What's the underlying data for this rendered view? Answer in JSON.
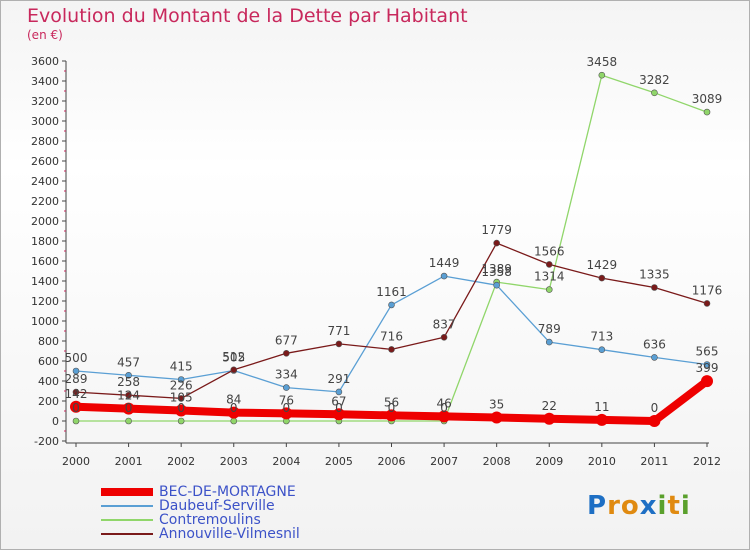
{
  "chart_data": {
    "type": "line",
    "title": "Evolution du Montant de la Dette par Habitant",
    "subtitle": "(en €)",
    "categories": [
      "2000",
      "2001",
      "2002",
      "2003",
      "2004",
      "2005",
      "2006",
      "2007",
      "2008",
      "2009",
      "2010",
      "2011",
      "2012"
    ],
    "ylim": [
      -200,
      3600
    ],
    "yticks": [
      -200,
      0,
      200,
      400,
      600,
      800,
      1000,
      1200,
      1400,
      1600,
      1800,
      2000,
      2200,
      2400,
      2600,
      2800,
      3000,
      3200,
      3400,
      3600
    ],
    "grid": false,
    "legend_position": "bottom-left",
    "series": [
      {
        "name": "BEC-DE-MORTAGNE",
        "color": "#ee0000",
        "width": 8,
        "values": [
          142,
          124,
          105,
          84,
          76,
          67,
          56,
          46,
          35,
          22,
          11,
          0,
          399
        ],
        "labels": [
          "142",
          "124",
          "105",
          "84",
          "76",
          "67",
          "56",
          "46",
          "35",
          "22",
          "11",
          "0",
          "399"
        ]
      },
      {
        "name": "Daubeuf-Serville",
        "color": "#5a9fd4",
        "width": 1.3,
        "values": [
          500,
          457,
          415,
          505,
          334,
          291,
          1161,
          1449,
          1358,
          789,
          713,
          636,
          565
        ],
        "labels": [
          "500",
          "457",
          "415",
          "505",
          "334",
          "291",
          "1161",
          "1449",
          "1358",
          "789",
          "713",
          "636",
          "565"
        ]
      },
      {
        "name": "Contremoulins",
        "color": "#90d66a",
        "width": 1.3,
        "values": [
          0,
          0,
          0,
          0,
          0,
          0,
          0,
          0,
          1389,
          1314,
          3458,
          3282,
          3089
        ],
        "labels": [
          "0",
          "0",
          "0",
          "0",
          "0",
          "0",
          "0",
          "0",
          "1389",
          "1314",
          "3458",
          "3282",
          "3089"
        ]
      },
      {
        "name": "Annouville-Vilmesnil",
        "color": "#7a1a1a",
        "width": 1.3,
        "values": [
          289,
          258,
          226,
          512,
          677,
          771,
          716,
          837,
          1779,
          1566,
          1429,
          1335,
          1176
        ],
        "labels": [
          "289",
          "258",
          "226",
          "512",
          "677",
          "771",
          "716",
          "837",
          "1779",
          "1566",
          "1429",
          "1335",
          "1176"
        ]
      }
    ]
  },
  "legend": {
    "items": [
      {
        "label": "BEC-DE-MORTAGNE",
        "color": "#ee0000"
      },
      {
        "label": "Daubeuf-Serville",
        "color": "#5a9fd4"
      },
      {
        "label": "Contremoulins",
        "color": "#90d66a"
      },
      {
        "label": "Annouville-Vilmesnil",
        "color": "#7a1a1a"
      }
    ]
  },
  "logo": {
    "letters": [
      "P",
      "r",
      "o",
      "x",
      "i",
      "t",
      "i"
    ],
    "colors": [
      "#1e6fc4",
      "#e08a10",
      "#e08a10",
      "#1e6fc4",
      "#5aa02c",
      "#e08a10",
      "#5aa02c"
    ]
  }
}
